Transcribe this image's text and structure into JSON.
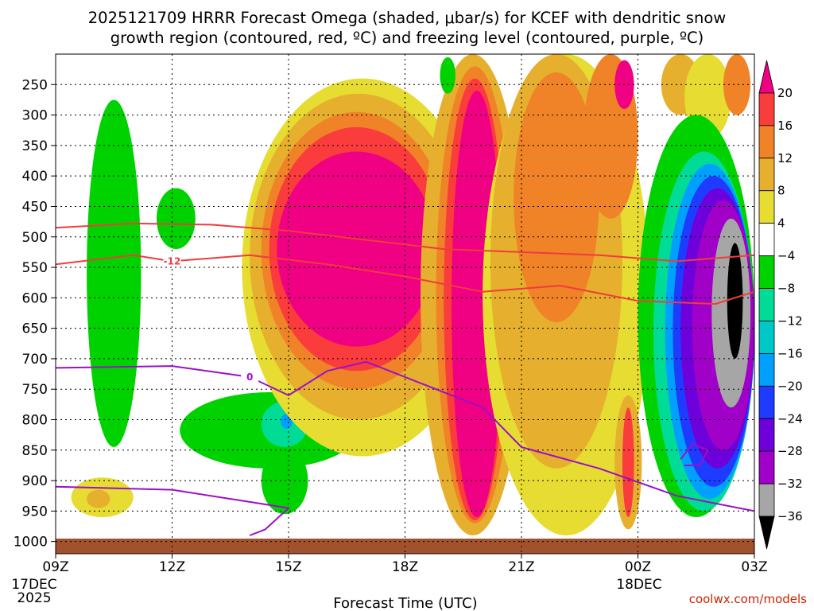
{
  "title_line1": "2025121709 HRRR Forecast Omega (shaded, μbar/s) for KCEF with dendritic snow",
  "title_line2": "growth region (contoured, red, ºC) and freezing level (contoured, purple, ºC)",
  "xlabel": "Forecast Time (UTC)",
  "credit": "coolwx.com/models",
  "date_labels": [
    "17DEC",
    "2025",
    "18DEC"
  ],
  "chart_data": {
    "type": "heatmap",
    "x_ticks": [
      {
        "hour": 0,
        "label": "09Z"
      },
      {
        "hour": 3,
        "label": "12Z"
      },
      {
        "hour": 6,
        "label": "15Z"
      },
      {
        "hour": 9,
        "label": "18Z"
      },
      {
        "hour": 12,
        "label": "21Z"
      },
      {
        "hour": 15,
        "label": "00Z"
      },
      {
        "hour": 18,
        "label": "03Z"
      }
    ],
    "y_ticks": [
      250,
      300,
      350,
      400,
      450,
      500,
      550,
      600,
      650,
      700,
      750,
      800,
      850,
      900,
      950,
      1000
    ],
    "ylim_hPa": [
      1020,
      200
    ],
    "grid": true,
    "colorbar": {
      "levels": [
        -36,
        -32,
        -28,
        -24,
        -20,
        -16,
        -12,
        -8,
        -4,
        4,
        8,
        12,
        16,
        20
      ],
      "colors": [
        "#000000",
        "#a6a6a6",
        "#a000c8",
        "#6e00dc",
        "#1e3cff",
        "#00a0ff",
        "#00c8c8",
        "#00dc96",
        "#00d200",
        "#ffffff",
        "#e6dc32",
        "#e6af2d",
        "#f08228",
        "#fa3c3c",
        "#f00082"
      ]
    },
    "omega_cells": [
      {
        "h": [
          0.8,
          2.2
        ],
        "p": [
          275,
          845
        ],
        "level": -4
      },
      {
        "h": [
          2.6,
          3.6
        ],
        "p": [
          420,
          520
        ],
        "level": -4
      },
      {
        "h": [
          0.4,
          2.0
        ],
        "p": [
          895,
          960
        ],
        "level": 4
      },
      {
        "h": [
          0.8,
          1.4
        ],
        "p": [
          915,
          945
        ],
        "level": 8
      },
      {
        "h": [
          3.2,
          7.8
        ],
        "p": [
          755,
          880
        ],
        "level": -4
      },
      {
        "h": [
          5.3,
          6.5
        ],
        "p": [
          770,
          845
        ],
        "level": -8
      },
      {
        "h": [
          5.8,
          6.1
        ],
        "p": [
          790,
          815
        ],
        "level": -16
      },
      {
        "h": [
          5.3,
          6.5
        ],
        "p": [
          845,
          955
        ],
        "level": -4
      },
      {
        "h": [
          4.8,
          11.0
        ],
        "p": [
          240,
          860
        ],
        "level": 4
      },
      {
        "h": [
          5.0,
          10.6
        ],
        "p": [
          265,
          800
        ],
        "level": 8
      },
      {
        "h": [
          5.3,
          10.2
        ],
        "p": [
          295,
          750
        ],
        "level": 12
      },
      {
        "h": [
          5.5,
          10.0
        ],
        "p": [
          320,
          720
        ],
        "level": 16
      },
      {
        "h": [
          5.7,
          9.8
        ],
        "p": [
          360,
          680
        ],
        "level": 20
      },
      {
        "h": [
          9.4,
          12.1
        ],
        "p": [
          200,
          990
        ],
        "level": 8
      },
      {
        "h": [
          9.8,
          11.8
        ],
        "p": [
          220,
          970
        ],
        "level": 12
      },
      {
        "h": [
          10.0,
          11.6
        ],
        "p": [
          240,
          965
        ],
        "level": 16
      },
      {
        "h": [
          10.2,
          11.5
        ],
        "p": [
          260,
          960
        ],
        "level": 20
      },
      {
        "h": [
          9.9,
          10.3
        ],
        "p": [
          205,
          265
        ],
        "level": -4
      },
      {
        "h": [
          11.0,
          15.3
        ],
        "p": [
          200,
          990
        ],
        "level": 4
      },
      {
        "h": [
          11.2,
          14.6
        ],
        "p": [
          200,
          880
        ],
        "level": 8
      },
      {
        "h": [
          11.8,
          14.0
        ],
        "p": [
          230,
          640
        ],
        "level": 12
      },
      {
        "h": [
          13.6,
          15.0
        ],
        "p": [
          200,
          470
        ],
        "level": 12
      },
      {
        "h": [
          14.4,
          14.9
        ],
        "p": [
          210,
          290
        ],
        "level": 20
      },
      {
        "h": [
          14.4,
          15.1
        ],
        "p": [
          760,
          980
        ],
        "level": 8
      },
      {
        "h": [
          14.6,
          14.9
        ],
        "p": [
          780,
          960
        ],
        "level": 16
      },
      {
        "h": [
          15.6,
          16.6
        ],
        "p": [
          200,
          300
        ],
        "level": 8
      },
      {
        "h": [
          16.2,
          17.4
        ],
        "p": [
          200,
          340
        ],
        "level": 4
      },
      {
        "h": [
          17.2,
          17.9
        ],
        "p": [
          200,
          300
        ],
        "level": 12
      },
      {
        "h": [
          15.0,
          18.0
        ],
        "p": [
          300,
          960
        ],
        "level": -4
      },
      {
        "h": [
          15.4,
          18.0
        ],
        "p": [
          360,
          950
        ],
        "level": -8
      },
      {
        "h": [
          15.7,
          18.0
        ],
        "p": [
          380,
          930
        ],
        "level": -16
      },
      {
        "h": [
          15.9,
          18.0
        ],
        "p": [
          400,
          910
        ],
        "level": -20
      },
      {
        "h": [
          16.1,
          18.0
        ],
        "p": [
          420,
          880
        ],
        "level": -24
      },
      {
        "h": [
          16.4,
          18.0
        ],
        "p": [
          440,
          850
        ],
        "level": -28
      },
      {
        "h": [
          16.9,
          17.9
        ],
        "p": [
          470,
          780
        ],
        "level": -32
      },
      {
        "h": [
          17.3,
          17.7
        ],
        "p": [
          510,
          700
        ],
        "level": -36
      }
    ],
    "dgz_contours": [
      {
        "label": "",
        "points": [
          [
            0,
            485
          ],
          [
            2,
            478
          ],
          [
            4,
            480
          ],
          [
            6,
            490
          ],
          [
            8,
            505
          ],
          [
            10,
            520
          ],
          [
            12,
            525
          ],
          [
            14,
            530
          ],
          [
            16,
            540
          ],
          [
            18,
            530
          ]
        ]
      },
      {
        "label": "-12",
        "points": [
          [
            0,
            545
          ],
          [
            2,
            530
          ],
          [
            3,
            540
          ],
          [
            5,
            530
          ],
          [
            7,
            545
          ],
          [
            9,
            565
          ],
          [
            11,
            590
          ],
          [
            13,
            580
          ],
          [
            15,
            605
          ],
          [
            17,
            610
          ],
          [
            18,
            590
          ]
        ]
      }
    ],
    "freezing_level_contours": [
      {
        "label": "0",
        "points": [
          [
            0,
            715
          ],
          [
            3,
            712
          ],
          [
            5,
            730
          ],
          [
            6,
            760
          ],
          [
            7,
            720
          ],
          [
            8,
            705
          ],
          [
            9,
            730
          ],
          [
            11,
            780
          ],
          [
            12,
            845
          ],
          [
            14,
            880
          ],
          [
            16,
            925
          ],
          [
            18,
            950
          ]
        ]
      },
      {
        "label": "",
        "points": [
          [
            0,
            910
          ],
          [
            3,
            915
          ],
          [
            5,
            935
          ],
          [
            6,
            945
          ],
          [
            5.4,
            980
          ],
          [
            5,
            990
          ]
        ]
      },
      {
        "label": "",
        "points": [
          [
            16.1,
            865
          ],
          [
            16.4,
            840
          ],
          [
            16.8,
            850
          ],
          [
            16.6,
            875
          ],
          [
            16.2,
            875
          ]
        ]
      }
    ]
  }
}
